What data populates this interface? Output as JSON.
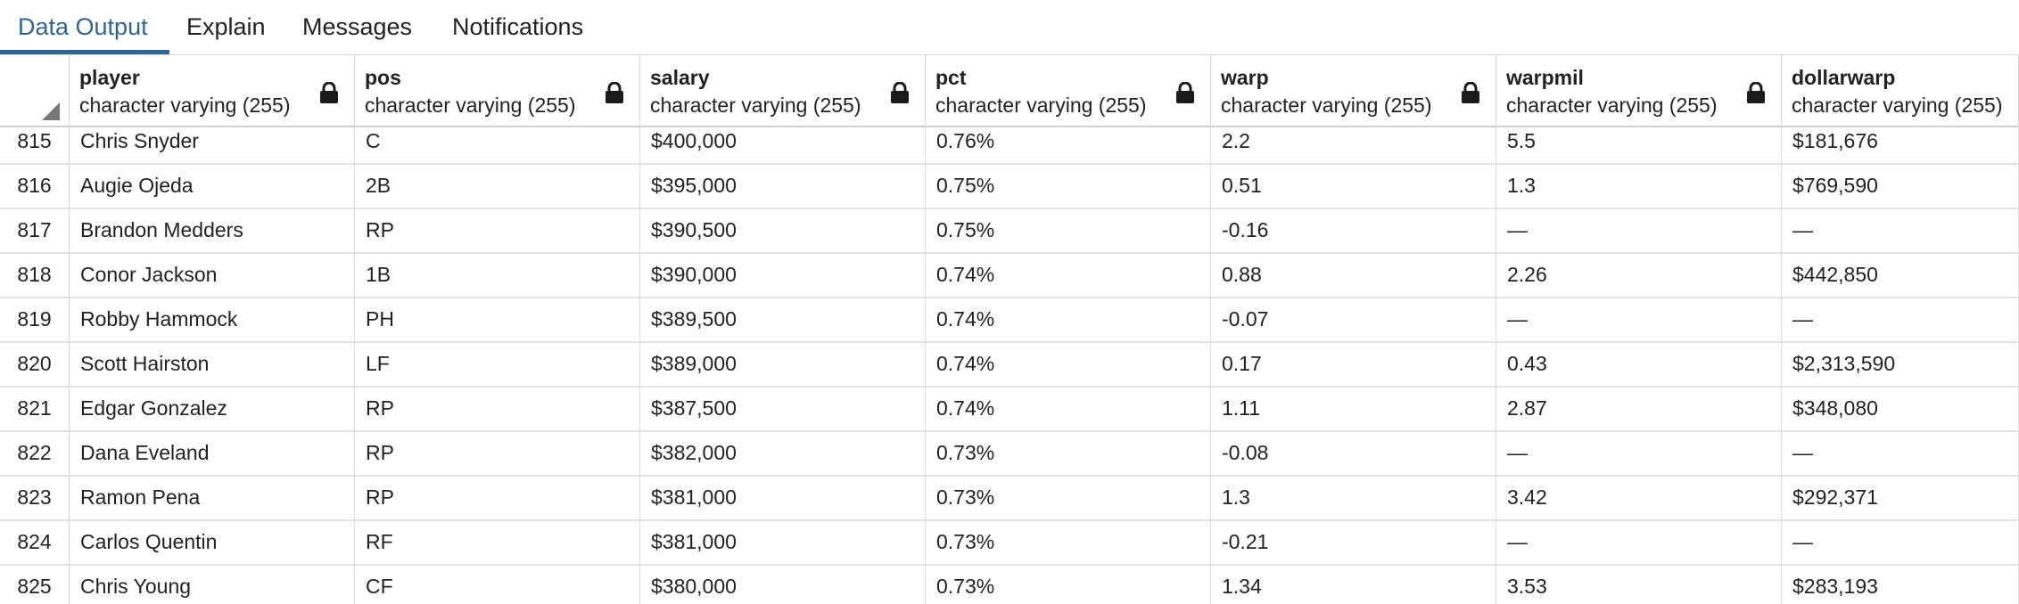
{
  "tabs": [
    {
      "label": "Data Output",
      "active": true
    },
    {
      "label": "Explain",
      "active": false
    },
    {
      "label": "Messages",
      "active": false
    },
    {
      "label": "Notifications",
      "active": false
    }
  ],
  "accent_color": "#326690",
  "columns": [
    {
      "name": "player",
      "type": "character varying (255)",
      "locked": true
    },
    {
      "name": "pos",
      "type": "character varying (255)",
      "locked": true
    },
    {
      "name": "salary",
      "type": "character varying (255)",
      "locked": true
    },
    {
      "name": "pct",
      "type": "character varying (255)",
      "locked": true
    },
    {
      "name": "warp",
      "type": "character varying (255)",
      "locked": true
    },
    {
      "name": "warpmil",
      "type": "character varying (255)",
      "locked": true
    },
    {
      "name": "dollarwarp",
      "type": "character varying (255)",
      "locked": false
    }
  ],
  "rows": [
    {
      "num": "815",
      "cells": [
        "Chris Snyder",
        "C",
        "$400,000",
        "0.76%",
        "2.2",
        "5.5",
        "$181,676"
      ]
    },
    {
      "num": "816",
      "cells": [
        "Augie Ojeda",
        "2B",
        "$395,000",
        "0.75%",
        "0.51",
        "1.3",
        "$769,590"
      ]
    },
    {
      "num": "817",
      "cells": [
        "Brandon Medders",
        "RP",
        "$390,500",
        "0.75%",
        "-0.16",
        "—",
        "—"
      ]
    },
    {
      "num": "818",
      "cells": [
        "Conor Jackson",
        "1B",
        "$390,000",
        "0.74%",
        "0.88",
        "2.26",
        "$442,850"
      ]
    },
    {
      "num": "819",
      "cells": [
        "Robby Hammock",
        "PH",
        "$389,500",
        "0.74%",
        "-0.07",
        "—",
        "—"
      ]
    },
    {
      "num": "820",
      "cells": [
        "Scott Hairston",
        "LF",
        "$389,000",
        "0.74%",
        "0.17",
        "0.43",
        "$2,313,590"
      ]
    },
    {
      "num": "821",
      "cells": [
        "Edgar Gonzalez",
        "RP",
        "$387,500",
        "0.74%",
        "1.11",
        "2.87",
        "$348,080"
      ]
    },
    {
      "num": "822",
      "cells": [
        "Dana Eveland",
        "RP",
        "$382,000",
        "0.73%",
        "-0.08",
        "—",
        "—"
      ]
    },
    {
      "num": "823",
      "cells": [
        "Ramon Pena",
        "RP",
        "$381,000",
        "0.73%",
        "1.3",
        "3.42",
        "$292,371"
      ]
    },
    {
      "num": "824",
      "cells": [
        "Carlos Quentin",
        "RF",
        "$381,000",
        "0.73%",
        "-0.21",
        "—",
        "—"
      ]
    },
    {
      "num": "825",
      "cells": [
        "Chris Young",
        "CF",
        "$380,000",
        "0.73%",
        "1.34",
        "3.53",
        "$283,193"
      ]
    }
  ]
}
